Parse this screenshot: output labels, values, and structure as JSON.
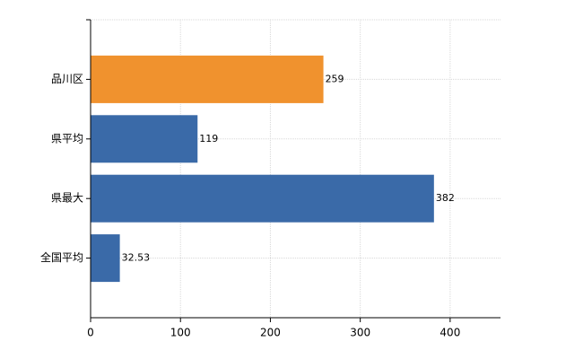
{
  "chart_data": {
    "type": "hbar",
    "categories": [
      "品川区",
      "県平均",
      "県最大",
      "全国平均"
    ],
    "values": [
      259,
      119,
      382,
      32.53
    ],
    "colors": [
      "#f0922e",
      "#3a6aa8",
      "#3a6aa8",
      "#3a6aa8"
    ],
    "xlim": [
      0,
      456
    ],
    "xticks": [
      0,
      100,
      200,
      300,
      400
    ],
    "grid": true
  }
}
